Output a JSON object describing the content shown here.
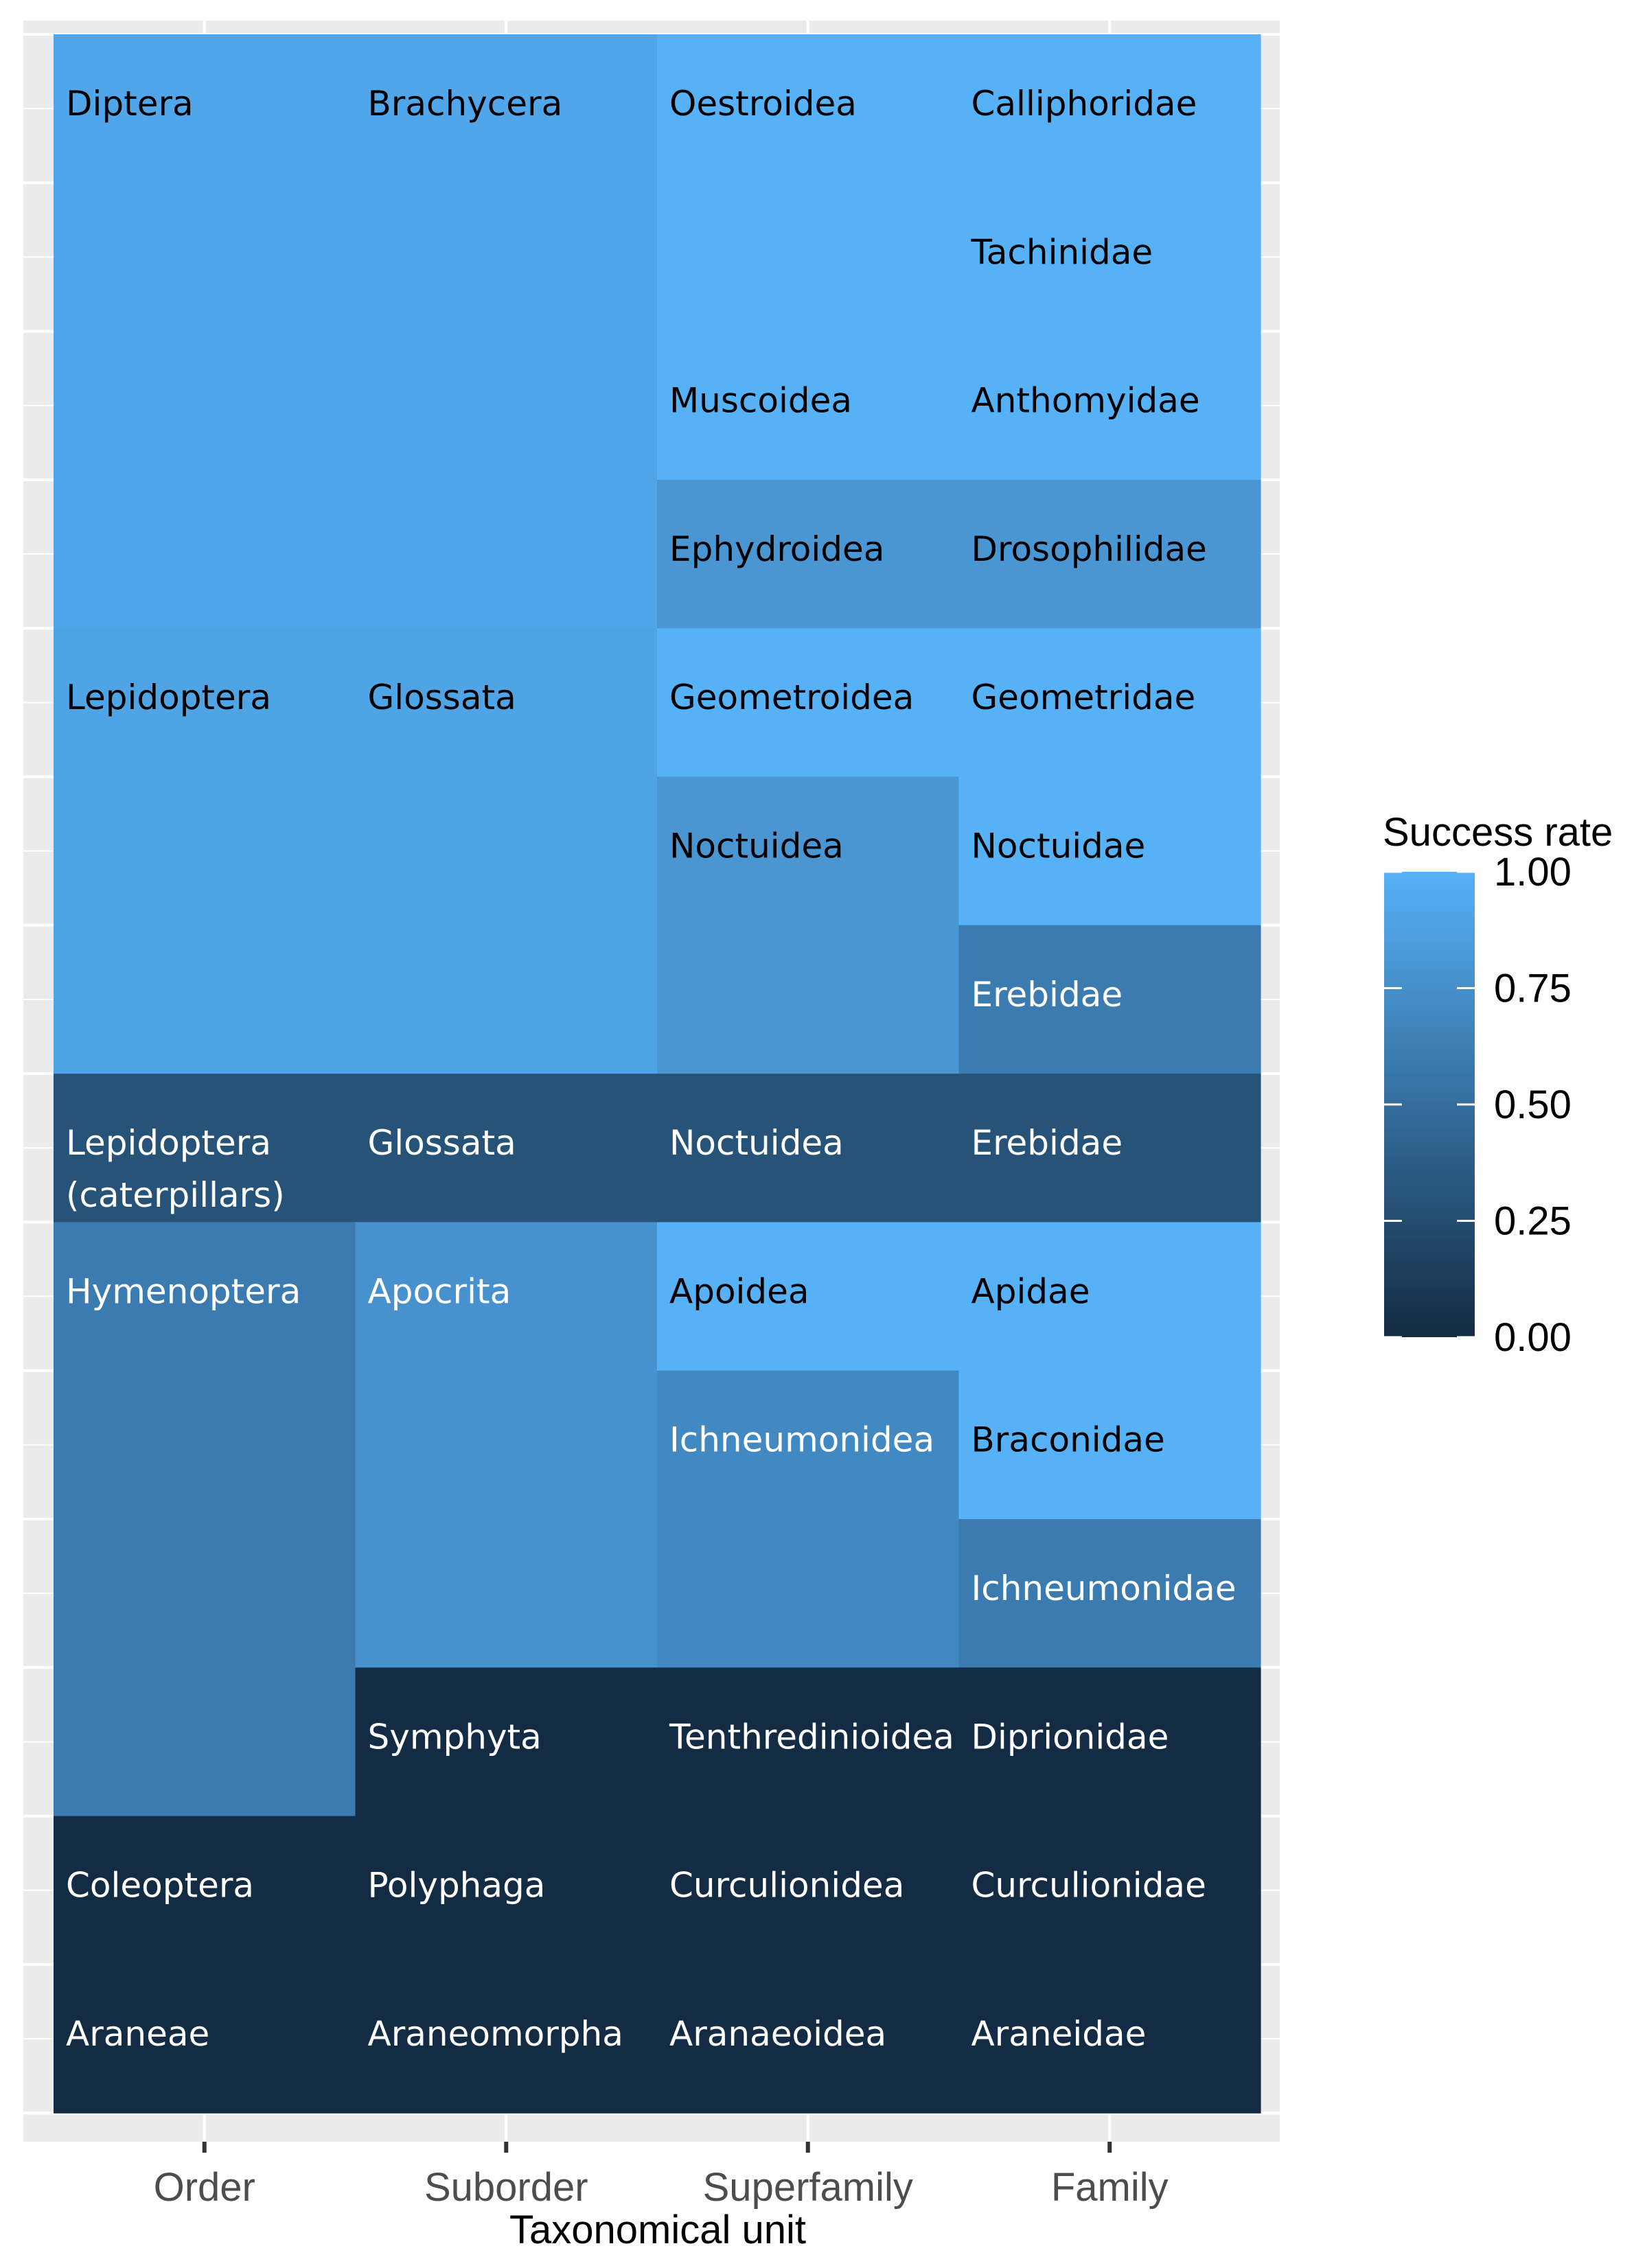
{
  "chart_data": {
    "type": "heatmap",
    "xlabel": "Taxonomical unit",
    "columns": [
      "Order",
      "Suborder",
      "Superfamily",
      "Family"
    ],
    "y_range": [
      0,
      14
    ],
    "legend": {
      "title": "Success rate",
      "ticks": [
        "1.00",
        "0.75",
        "0.50",
        "0.25",
        "0.00"
      ],
      "tick_values": [
        1.0,
        0.75,
        0.5,
        0.25,
        0.0
      ],
      "position": "right",
      "color_low": "#132b43",
      "color_high": "#56b1f7"
    },
    "grid": true,
    "tiles": [
      {
        "column": "Order",
        "label": "Diptera",
        "y_top": 0,
        "y_bottom": 4,
        "value": 0.92,
        "text_color": "#000000"
      },
      {
        "column": "Order",
        "label": "Lepidoptera",
        "y_top": 4,
        "y_bottom": 7,
        "value": 0.9,
        "text_color": "#000000"
      },
      {
        "column": "Order",
        "label": "Lepidoptera\n(caterpillars)",
        "y_top": 7,
        "y_bottom": 8,
        "value": 0.3,
        "text_color": "#ffffff"
      },
      {
        "column": "Order",
        "label": "Hymenoptera",
        "y_top": 8,
        "y_bottom": 12,
        "value": 0.6,
        "text_color": "#ffffff"
      },
      {
        "column": "Order",
        "label": "Coleoptera",
        "y_top": 12,
        "y_bottom": 13,
        "value": 0.0,
        "text_color": "#ffffff"
      },
      {
        "column": "Order",
        "label": "Araneae",
        "y_top": 13,
        "y_bottom": 14,
        "value": 0.0,
        "text_color": "#ffffff"
      },
      {
        "column": "Suborder",
        "label": "Brachycera",
        "y_top": 0,
        "y_bottom": 4,
        "value": 0.92,
        "text_color": "#000000"
      },
      {
        "column": "Suborder",
        "label": "Glossata",
        "y_top": 4,
        "y_bottom": 7,
        "value": 0.9,
        "text_color": "#000000"
      },
      {
        "column": "Suborder",
        "label": "Glossata",
        "y_top": 7,
        "y_bottom": 8,
        "value": 0.3,
        "text_color": "#ffffff"
      },
      {
        "column": "Suborder",
        "label": "Apocrita",
        "y_top": 8,
        "y_bottom": 11,
        "value": 0.77,
        "text_color": "#ffffff"
      },
      {
        "column": "Suborder",
        "label": "Symphyta",
        "y_top": 11,
        "y_bottom": 12,
        "value": 0.0,
        "text_color": "#ffffff"
      },
      {
        "column": "Suborder",
        "label": "Polyphaga",
        "y_top": 12,
        "y_bottom": 13,
        "value": 0.0,
        "text_color": "#ffffff"
      },
      {
        "column": "Suborder",
        "label": "Araneomorpha",
        "y_top": 13,
        "y_bottom": 14,
        "value": 0.0,
        "text_color": "#ffffff"
      },
      {
        "column": "Superfamily",
        "label": "Oestroidea",
        "y_top": 0,
        "y_bottom": 2,
        "value": 1.0,
        "text_color": "#000000"
      },
      {
        "column": "Superfamily",
        "label": "Muscoidea",
        "y_top": 2,
        "y_bottom": 3,
        "value": 1.0,
        "text_color": "#000000"
      },
      {
        "column": "Superfamily",
        "label": "Ephydroidea",
        "y_top": 3,
        "y_bottom": 4,
        "value": 0.8,
        "text_color": "#000000"
      },
      {
        "column": "Superfamily",
        "label": "Geometroidea",
        "y_top": 4,
        "y_bottom": 5,
        "value": 1.0,
        "text_color": "#000000"
      },
      {
        "column": "Superfamily",
        "label": "Noctuidea",
        "y_top": 5,
        "y_bottom": 7,
        "value": 0.8,
        "text_color": "#000000"
      },
      {
        "column": "Superfamily",
        "label": "Noctuidea",
        "y_top": 7,
        "y_bottom": 8,
        "value": 0.3,
        "text_color": "#ffffff"
      },
      {
        "column": "Superfamily",
        "label": "Apoidea",
        "y_top": 8,
        "y_bottom": 9,
        "value": 1.0,
        "text_color": "#000000"
      },
      {
        "column": "Superfamily",
        "label": "Ichneumonidea",
        "y_top": 9,
        "y_bottom": 11,
        "value": 0.7,
        "text_color": "#ffffff"
      },
      {
        "column": "Superfamily",
        "label": "Tenthredinioidea",
        "y_top": 11,
        "y_bottom": 12,
        "value": 0.0,
        "text_color": "#ffffff"
      },
      {
        "column": "Superfamily",
        "label": "Curculionidea",
        "y_top": 12,
        "y_bottom": 13,
        "value": 0.0,
        "text_color": "#ffffff"
      },
      {
        "column": "Superfamily",
        "label": "Aranaeoidea",
        "y_top": 13,
        "y_bottom": 14,
        "value": 0.0,
        "text_color": "#ffffff"
      },
      {
        "column": "Family",
        "label": "Calliphoridae",
        "y_top": 0,
        "y_bottom": 1,
        "value": 1.0,
        "text_color": "#000000"
      },
      {
        "column": "Family",
        "label": "Tachinidae",
        "y_top": 1,
        "y_bottom": 2,
        "value": 1.0,
        "text_color": "#000000"
      },
      {
        "column": "Family",
        "label": "Anthomyidae",
        "y_top": 2,
        "y_bottom": 3,
        "value": 1.0,
        "text_color": "#000000"
      },
      {
        "column": "Family",
        "label": "Drosophilidae",
        "y_top": 3,
        "y_bottom": 4,
        "value": 0.8,
        "text_color": "#000000"
      },
      {
        "column": "Family",
        "label": "Geometridae",
        "y_top": 4,
        "y_bottom": 5,
        "value": 1.0,
        "text_color": "#000000"
      },
      {
        "column": "Family",
        "label": "Noctuidae",
        "y_top": 5,
        "y_bottom": 6,
        "value": 1.0,
        "text_color": "#000000"
      },
      {
        "column": "Family",
        "label": "Erebidae",
        "y_top": 6,
        "y_bottom": 7,
        "value": 0.6,
        "text_color": "#ffffff"
      },
      {
        "column": "Family",
        "label": "Erebidae",
        "y_top": 7,
        "y_bottom": 8,
        "value": 0.3,
        "text_color": "#ffffff"
      },
      {
        "column": "Family",
        "label": "Apidae",
        "y_top": 8,
        "y_bottom": 9,
        "value": 1.0,
        "text_color": "#000000"
      },
      {
        "column": "Family",
        "label": "Braconidae",
        "y_top": 9,
        "y_bottom": 10,
        "value": 1.0,
        "text_color": "#000000"
      },
      {
        "column": "Family",
        "label": "Ichneumonidae",
        "y_top": 10,
        "y_bottom": 11,
        "value": 0.6,
        "text_color": "#ffffff"
      },
      {
        "column": "Family",
        "label": "Diprionidae",
        "y_top": 11,
        "y_bottom": 12,
        "value": 0.0,
        "text_color": "#ffffff"
      },
      {
        "column": "Family",
        "label": "Curculionidae",
        "y_top": 12,
        "y_bottom": 13,
        "value": 0.0,
        "text_color": "#ffffff"
      },
      {
        "column": "Family",
        "label": "Araneidae",
        "y_top": 13,
        "y_bottom": 14,
        "value": 0.0,
        "text_color": "#ffffff"
      }
    ]
  }
}
